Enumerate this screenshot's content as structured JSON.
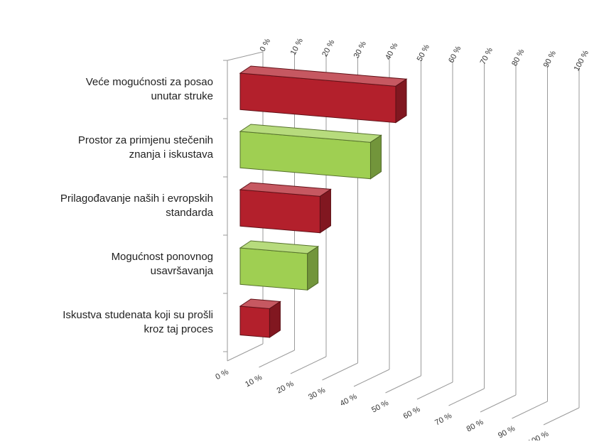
{
  "chart_data": {
    "type": "bar",
    "orientation": "horizontal",
    "three_d": true,
    "categories": [
      [
        "Veće mogućnosti za posao",
        "unutar struke"
      ],
      [
        "Prostor za primjenu stečenih",
        "znanja i iskustava"
      ],
      [
        "Prilagođavanje naših i evropskih",
        "standarda"
      ],
      [
        "Mogućnost ponovnog",
        "usavršavanja"
      ],
      [
        "Iskustva studenata koji su prošli",
        "kroz taj proces"
      ]
    ],
    "values": [
      37,
      31,
      19,
      16,
      7
    ],
    "value_unit": "%",
    "xlim": [
      0,
      100
    ],
    "ticks": [
      0,
      10,
      20,
      30,
      40,
      50,
      60,
      70,
      80,
      90,
      100
    ],
    "tick_labels": [
      "0 %",
      "10 %",
      "20 %",
      "30 %",
      "40 %",
      "50 %",
      "60 %",
      "70 %",
      "80 %",
      "90 %",
      "100 %"
    ],
    "grid": true,
    "legend": "none",
    "colors": {
      "red": "#b3202c",
      "green": "#9fcf52"
    },
    "bar_colors": [
      "red",
      "green",
      "red",
      "green",
      "red"
    ]
  }
}
